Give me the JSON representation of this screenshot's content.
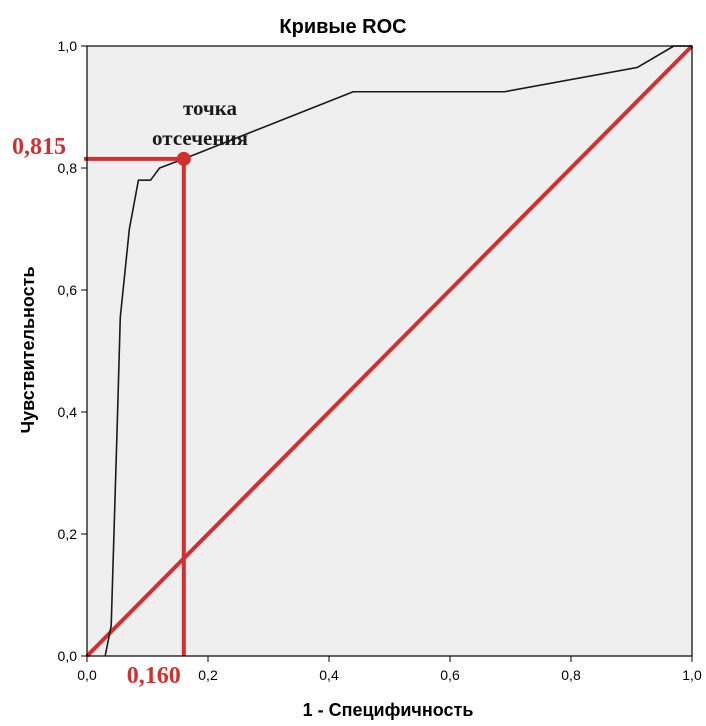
{
  "chart_data": {
    "type": "line",
    "title": "Кривые ROC",
    "xlabel": "1 - Специфичность",
    "ylabel": "Чувствительность",
    "xlim": [
      0,
      1
    ],
    "ylim": [
      0,
      1
    ],
    "xticks": [
      "0,0",
      "0,2",
      "0,4",
      "0,6",
      "0,8",
      "1,0"
    ],
    "yticks": [
      "0,0",
      "0,2",
      "0,4",
      "0,6",
      "0,8",
      "1,0"
    ],
    "grid": false,
    "series": [
      {
        "color": "#1a1a1a",
        "x": [
          0.03,
          0.04,
          0.05,
          0.055,
          0.07,
          0.085,
          0.105,
          0.12,
          0.16,
          0.44,
          0.69,
          0.91,
          0.97,
          1.0
        ],
        "y": [
          0.0,
          0.05,
          0.38,
          0.555,
          0.7,
          0.78,
          0.78,
          0.8,
          0.815,
          0.925,
          0.925,
          0.965,
          1.0,
          1.0
        ]
      },
      {
        "color": "#d32f2f",
        "x": [
          0.0,
          1.0
        ],
        "y": [
          0.0,
          1.0
        ]
      }
    ],
    "annotations": {
      "cutoff_label_line1": "точка",
      "cutoff_label_line2": "отсечения",
      "cutoff_x": 0.16,
      "cutoff_y": 0.815,
      "cutoff_x_text": "0,160",
      "cutoff_y_text": "0,815",
      "color": "#d32f2f"
    },
    "plot_background": "#efefef"
  }
}
